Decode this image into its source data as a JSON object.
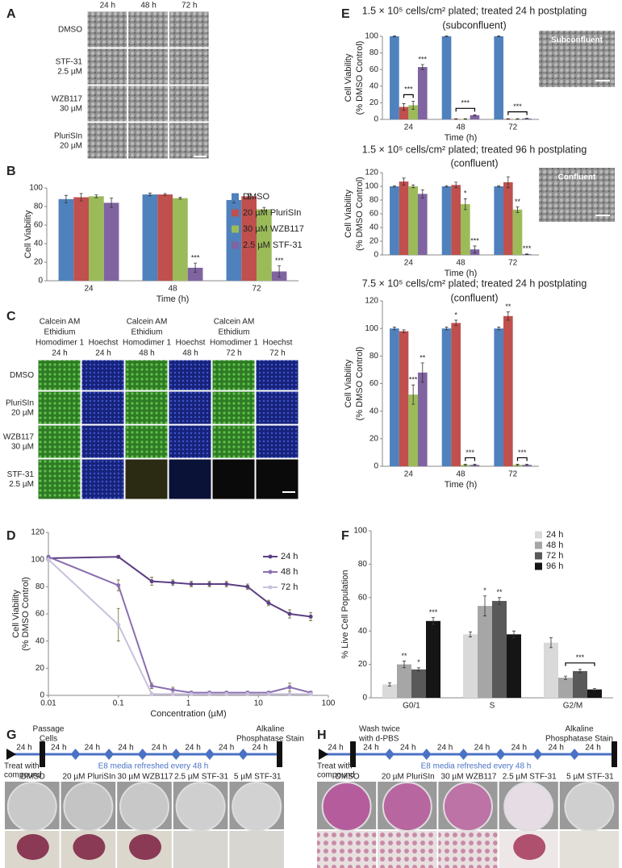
{
  "panel_labels": [
    "A",
    "B",
    "C",
    "D",
    "E",
    "F",
    "G",
    "H"
  ],
  "panel_a": {
    "columns": [
      "24 h",
      "48 h",
      "72 h"
    ],
    "rows": [
      [
        "DMSO"
      ],
      [
        "STF-31",
        "2.5 µM"
      ],
      [
        "WZB117",
        "30 µM"
      ],
      [
        "PluriSIn",
        "20 µM"
      ]
    ]
  },
  "panel_c": {
    "headers": [
      [
        "Calcein AM",
        "Ethidium",
        "Homodimer 1",
        "24 h"
      ],
      [
        "Hoechst",
        "24 h"
      ],
      [
        "Calcein AM",
        "Ethidium",
        "Homodimer 1",
        "48 h"
      ],
      [
        "Hoechst",
        "48 h"
      ],
      [
        "Calcein AM",
        "Ethidium",
        "Homodimer 1",
        "72 h"
      ],
      [
        "Hoechst",
        "72 h"
      ]
    ],
    "rows": [
      [
        "DMSO"
      ],
      [
        "PluriSIn",
        "20 µM"
      ],
      [
        "WZB117",
        "30 µM"
      ],
      [
        "STF-31",
        "2.5 µM"
      ]
    ]
  },
  "panel_e_insets": [
    "Subconfluent",
    "Confluent"
  ],
  "panel_g": {
    "start": [
      "Treat with",
      "compound"
    ],
    "milestone": [
      "Passage",
      "Cells"
    ],
    "end": [
      "Alkaline",
      "Phosphatase Stain"
    ],
    "intervals": [
      "24 h",
      "24 h",
      "24 h",
      "24 h",
      "24 h",
      "24 h",
      "24 h",
      "24 h"
    ],
    "note": "E8 media refreshed every 48 h",
    "wells": [
      "DMSO",
      "20 µM PluriSIn",
      "30 µM WZB117",
      "2.5 µM STF-31",
      "5 µM STF-31"
    ]
  },
  "panel_h": {
    "start": [
      "Treat with",
      "compound"
    ],
    "milestone": [
      "Wash twice",
      "with d-PBS"
    ],
    "end": [
      "Alkaline",
      "Phosphatase Stain"
    ],
    "intervals": [
      "24 h",
      "24 h",
      "24 h",
      "24 h",
      "24 h",
      "24 h",
      "24 h",
      "24 h"
    ],
    "note": "E8 media refreshed every 48 h",
    "wells": [
      "DMSO",
      "20 µM PluriSIn",
      "30 µM WZB117",
      "2.5 µM STF-31",
      "5 µM STF-31"
    ]
  },
  "chart_data": [
    {
      "type": "bar",
      "ylabel": "Cell Viability",
      "xlabel": "Time (h)",
      "categories": [
        "24",
        "48",
        "72"
      ],
      "ylim": [
        0,
        100
      ],
      "yticks": [
        0,
        20,
        40,
        60,
        80,
        100
      ],
      "legend": "upper right",
      "series": [
        {
          "name": "DMSO",
          "color": "#4f81bd",
          "values": [
            88,
            93,
            87
          ],
          "errors": [
            4,
            1.5,
            3
          ]
        },
        {
          "name": "20 µM PluriSIn",
          "color": "#c0504d",
          "values": [
            90,
            93,
            91
          ],
          "errors": [
            4,
            1,
            3
          ]
        },
        {
          "name": "30 µM WZB117",
          "color": "#9bbb59",
          "values": [
            91,
            89,
            77
          ],
          "errors": [
            1.5,
            1,
            2
          ]
        },
        {
          "name": "2.5 µM STF-31",
          "color": "#8064a2",
          "values": [
            84,
            14,
            10
          ],
          "errors": [
            5,
            5,
            6
          ],
          "significance": [
            null,
            "***",
            "***"
          ]
        }
      ]
    },
    {
      "type": "line",
      "ylabel": [
        "Cell Viability",
        "(% DMSO Control)"
      ],
      "xlabel": "Concentration (µM)",
      "xscale": "log",
      "x": [
        0.01,
        0.1,
        0.3,
        0.6,
        1.1,
        2,
        3.5,
        7,
        14,
        28,
        56
      ],
      "xlim": [
        0.01,
        100
      ],
      "xticks": [
        0.01,
        0.1,
        1,
        10,
        100
      ],
      "ylim": [
        0,
        120
      ],
      "yticks": [
        0,
        20,
        40,
        60,
        80,
        100,
        120
      ],
      "legend": "upper right",
      "series": [
        {
          "name": "24 h",
          "color": "#5b3f82",
          "values": [
            101,
            102,
            84,
            83,
            82,
            82,
            82,
            80,
            68,
            60,
            58
          ],
          "errors": [
            1,
            1,
            3,
            2,
            2,
            2,
            2,
            2,
            2,
            3,
            3
          ]
        },
        {
          "name": "48 h",
          "color": "#8a6fb0",
          "values": [
            102,
            81,
            7,
            4,
            2,
            2,
            2,
            2,
            2,
            6,
            2
          ],
          "errors": [
            1,
            4,
            2,
            2,
            1,
            1,
            1,
            1,
            1,
            3,
            1
          ]
        },
        {
          "name": "72 h",
          "color": "#c9c0dc",
          "values": [
            100,
            52,
            1,
            1,
            1,
            1,
            1,
            1,
            1,
            1,
            1
          ],
          "errors": [
            1,
            12,
            0.5,
            0.5,
            0.5,
            0.5,
            0.5,
            0.5,
            0.5,
            0.5,
            0.5
          ]
        }
      ]
    },
    {
      "type": "bar",
      "title": [
        "1.5 × 10⁵ cells/cm² plated; treated 24 h postplating",
        "(subconfluent)"
      ],
      "ylabel": [
        "Cell Viability",
        "(% DMSO Control)"
      ],
      "xlabel": "Time (h)",
      "categories": [
        "24",
        "48",
        "72"
      ],
      "ylim": [
        0,
        100
      ],
      "yticks": [
        0,
        20,
        40,
        60,
        80,
        100
      ],
      "brackets": [
        "***",
        "***",
        "***"
      ],
      "series": [
        {
          "color": "#4f81bd",
          "values": [
            100,
            100,
            100
          ],
          "errors": [
            0.5,
            0.5,
            0.5
          ]
        },
        {
          "color": "#c0504d",
          "values": [
            15,
            0.5,
            0.5
          ],
          "errors": [
            4,
            0.3,
            0.3
          ]
        },
        {
          "color": "#9bbb59",
          "values": [
            17,
            0.5,
            0.5
          ],
          "errors": [
            5,
            0.3,
            0.3
          ]
        },
        {
          "color": "#8064a2",
          "values": [
            63,
            5,
            1
          ],
          "errors": [
            3,
            0.5,
            0.3
          ],
          "significance": [
            "***",
            null,
            null
          ]
        }
      ]
    },
    {
      "type": "bar",
      "title": [
        "1.5 × 10⁵ cells/cm² plated; treated 96 h postplating",
        "(confluent)"
      ],
      "ylabel": [
        "Cell Viability",
        "(% DMSO Control)"
      ],
      "xlabel": "Time (h)",
      "categories": [
        "24",
        "48",
        "72"
      ],
      "ylim": [
        0,
        120
      ],
      "yticks": [
        0,
        20,
        40,
        60,
        80,
        100,
        120
      ],
      "series": [
        {
          "color": "#4f81bd",
          "values": [
            100,
            100,
            100
          ],
          "errors": [
            1,
            1,
            1
          ]
        },
        {
          "color": "#c0504d",
          "values": [
            107,
            102,
            106
          ],
          "errors": [
            5,
            4,
            8
          ]
        },
        {
          "color": "#9bbb59",
          "values": [
            100,
            74,
            66
          ],
          "errors": [
            2,
            8,
            4
          ],
          "significance": [
            null,
            "*",
            "**"
          ]
        },
        {
          "color": "#8064a2",
          "values": [
            89,
            8,
            1
          ],
          "errors": [
            6,
            5,
            0.5
          ],
          "significance": [
            null,
            "***",
            "***"
          ]
        }
      ]
    },
    {
      "type": "bar",
      "title": [
        "7.5 × 10⁵ cells/cm² plated; treated 24 h postplating",
        "(confluent)"
      ],
      "ylabel": [
        "Cell Viability",
        "(% DMSO Control)"
      ],
      "xlabel": "Time (h)",
      "categories": [
        "24",
        "48",
        "72"
      ],
      "ylim": [
        0,
        120
      ],
      "yticks": [
        0,
        20,
        40,
        60,
        80,
        100,
        120
      ],
      "brackets": [
        null,
        "***",
        "***"
      ],
      "series": [
        {
          "color": "#4f81bd",
          "values": [
            100,
            100,
            100
          ],
          "errors": [
            1,
            1,
            1
          ]
        },
        {
          "color": "#c0504d",
          "values": [
            98,
            104,
            109
          ],
          "errors": [
            1,
            2,
            3
          ],
          "significance": [
            null,
            "*",
            "**"
          ]
        },
        {
          "color": "#9bbb59",
          "values": [
            52,
            1,
            1
          ],
          "errors": [
            7,
            0.5,
            0.5
          ],
          "significance": [
            "***",
            null,
            null
          ]
        },
        {
          "color": "#8064a2",
          "values": [
            68,
            1,
            1
          ],
          "errors": [
            7,
            0.5,
            0.5
          ],
          "significance": [
            "**",
            null,
            null
          ]
        }
      ]
    },
    {
      "type": "bar",
      "ylabel": "% Live Cell Population",
      "categories": [
        "G0/1",
        "S",
        "G2/M"
      ],
      "ylim": [
        0,
        100
      ],
      "yticks": [
        0,
        20,
        40,
        60,
        80,
        100
      ],
      "legend": "upper right",
      "brackets": [
        null,
        null,
        "***"
      ],
      "series": [
        {
          "name": "24 h",
          "color": "#d9d9d9",
          "values": [
            8,
            38,
            33
          ],
          "errors": [
            1,
            1.5,
            3
          ]
        },
        {
          "name": "48 h",
          "color": "#a6a6a6",
          "values": [
            20,
            55,
            12
          ],
          "errors": [
            2,
            6,
            1
          ],
          "significance": [
            "**",
            "*",
            null
          ]
        },
        {
          "name": "72 h",
          "color": "#595959",
          "values": [
            17,
            58,
            16
          ],
          "errors": [
            1,
            2,
            1
          ],
          "significance": [
            "*",
            "**",
            null
          ]
        },
        {
          "name": "96 h",
          "color": "#151515",
          "values": [
            46,
            38,
            5
          ],
          "errors": [
            2,
            2,
            0.5
          ],
          "significance": [
            "***",
            null,
            null
          ]
        }
      ]
    }
  ]
}
